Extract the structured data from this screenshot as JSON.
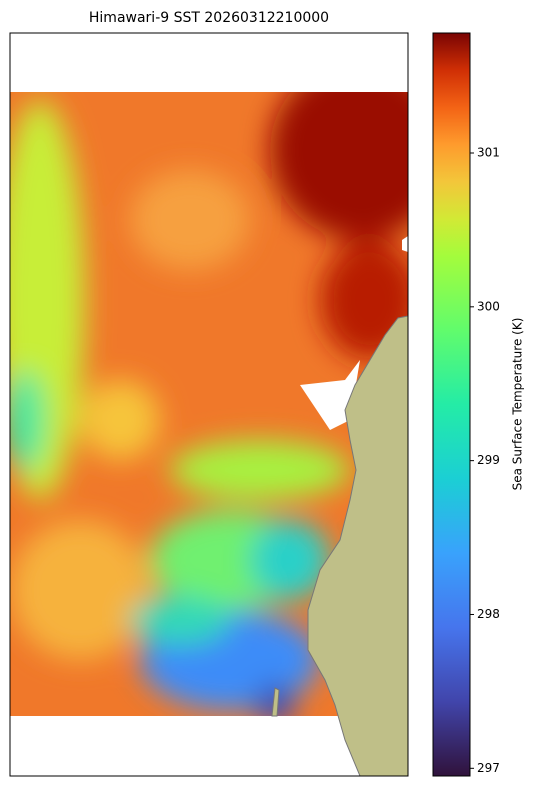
{
  "map": {
    "title": "Himawari-9 SST 20260312210000",
    "colorbar": {
      "label": "Sea Surface Temperature (K)",
      "colormap": "turbo",
      "clim": [
        296.95,
        301.78
      ],
      "ticks": [
        297,
        298,
        299,
        300,
        301
      ]
    }
  }
}
